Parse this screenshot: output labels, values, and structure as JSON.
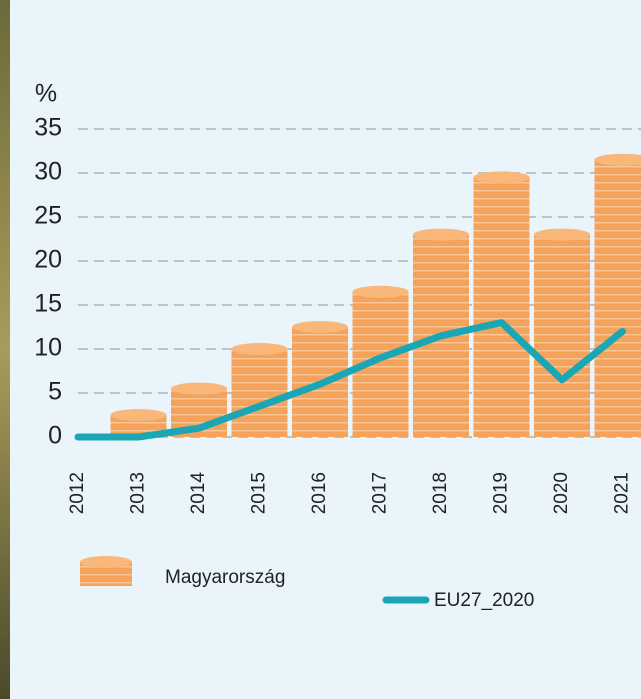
{
  "chart_data": {
    "type": "bar",
    "ylabel": "%",
    "categories": [
      "2012",
      "2013",
      "2014",
      "2015",
      "2016",
      "2017",
      "2018",
      "2019",
      "2020",
      "2021"
    ],
    "series": [
      {
        "name": "Magyarország",
        "type": "bar",
        "color": "#f5a25a",
        "values": [
          0,
          2.5,
          5.5,
          10,
          12.5,
          16.5,
          23,
          29.5,
          23,
          31.5
        ]
      },
      {
        "name": "EU27_2020",
        "type": "line",
        "color": "#1ba6b6",
        "values": [
          0,
          0,
          1,
          3.5,
          6,
          9,
          11.5,
          13,
          6.5,
          12
        ]
      }
    ],
    "ylim": [
      0,
      35
    ],
    "yticks": [
      0,
      5,
      10,
      15,
      20,
      25,
      30,
      35
    ],
    "grid": true
  }
}
